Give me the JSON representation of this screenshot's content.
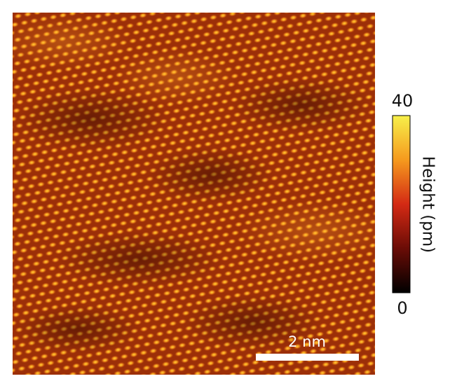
{
  "image": {
    "scale_bar": "2 nm"
  },
  "colorbar": {
    "label": "Height (pm)",
    "max": 40,
    "min": 0
  }
}
